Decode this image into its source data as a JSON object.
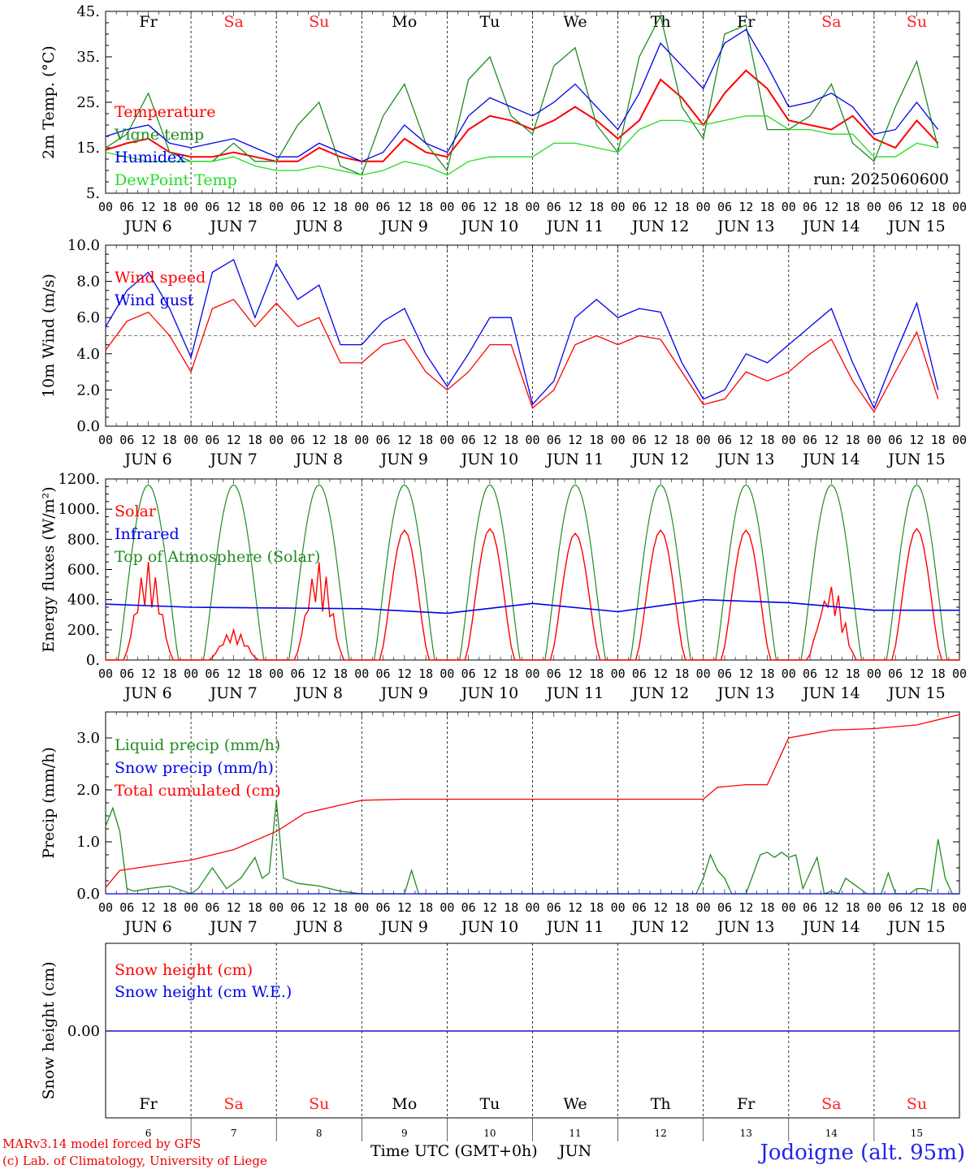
{
  "run_label": "run: 2025060600",
  "x_axis": {
    "hour_labels": [
      "00",
      "06",
      "12",
      "18"
    ],
    "end_label": "00",
    "month": "JUN",
    "days": [
      6,
      7,
      8,
      9,
      10,
      11,
      12,
      13,
      14,
      15
    ],
    "day_names": [
      "Fr",
      "Sa",
      "Su",
      "Mo",
      "Tu",
      "We",
      "Th",
      "Fr",
      "Sa",
      "Su"
    ],
    "weekend_color": "#ff2020",
    "weekday_color": "#000000",
    "title": "Time UTC (GMT+0h)",
    "title_suffix": "JUN"
  },
  "footer": {
    "model": "MARv3.14 model forced by GFS",
    "copyright": "(c) Lab. of Climatology, University of Liege",
    "station": "Jodoigne (alt. 95m)"
  },
  "colors": {
    "red": "#ff0000",
    "blue": "#0000ee",
    "green": "#228b22",
    "lime": "#22dd22",
    "grey": "#555555"
  },
  "chart_data": [
    {
      "type": "line",
      "id": "temperature",
      "ylabel": "2m Temp. (°C)",
      "ylim": [
        5,
        45
      ],
      "ticks": [
        5,
        15,
        25,
        35,
        45
      ],
      "tick_labels": [
        "5.",
        "15.",
        "25.",
        "35.",
        "45."
      ],
      "x_unit": "hours since JUN 6 00 UTC",
      "x": [
        0,
        6,
        12,
        18,
        24,
        30,
        36,
        42,
        48,
        54,
        60,
        66,
        72,
        78,
        84,
        90,
        96,
        102,
        108,
        114,
        120,
        126,
        132,
        138,
        144,
        150,
        156,
        162,
        168,
        174,
        180,
        186,
        192,
        198,
        204,
        210,
        216,
        222,
        228,
        234
      ],
      "series": [
        {
          "name": "Temperature",
          "color": "#ff0000",
          "values": [
            14.5,
            16,
            17,
            14,
            13,
            13,
            14,
            13,
            12,
            12,
            15,
            13,
            12,
            12,
            17,
            14,
            13,
            19,
            22,
            21,
            19,
            21,
            24,
            21,
            17,
            21,
            30,
            26,
            20,
            27,
            32,
            28,
            21,
            20,
            19,
            22,
            17,
            15,
            21,
            16
          ]
        },
        {
          "name": "Vigne temp",
          "color": "#228b22",
          "values": [
            15,
            18,
            27,
            14,
            12,
            12,
            16,
            12,
            12,
            20,
            25,
            11,
            9,
            22,
            29,
            16,
            10,
            30,
            35,
            22,
            18,
            33,
            37,
            20,
            14,
            35,
            44,
            24,
            17,
            40,
            42,
            19,
            19,
            22,
            29,
            16,
            12,
            24,
            34,
            15
          ]
        },
        {
          "name": "Humidex",
          "color": "#0000ee",
          "values": [
            17.5,
            19,
            20,
            16,
            15,
            16,
            17,
            15,
            13,
            13,
            16,
            14,
            12,
            14,
            20,
            16,
            14,
            22,
            26,
            24,
            22,
            25,
            29,
            24,
            19,
            27,
            38,
            33,
            28,
            38,
            41,
            33,
            24,
            25,
            27,
            24,
            18,
            19,
            25,
            19
          ]
        },
        {
          "name": "DewPoint Temp",
          "color": "#22dd22",
          "values": [
            14,
            13,
            12,
            12,
            12,
            12,
            13,
            11,
            10,
            10,
            11,
            10,
            9,
            10,
            12,
            11,
            9,
            12,
            13,
            13,
            13,
            16,
            16,
            15,
            14,
            19,
            21,
            21,
            20,
            21,
            22,
            22,
            19,
            19,
            18,
            18,
            13,
            13,
            16,
            15
          ]
        }
      ]
    },
    {
      "type": "line",
      "id": "wind",
      "ylabel": "10m Wind (m/s)",
      "ylim": [
        0,
        10
      ],
      "ticks": [
        0,
        2,
        4,
        6,
        8,
        10
      ],
      "tick_labels": [
        "0.0",
        "2.0",
        "4.0",
        "6.0",
        "8.0",
        "10.0"
      ],
      "reference_line": 5,
      "x_unit": "hours since JUN 6 00 UTC",
      "x": [
        0,
        6,
        12,
        18,
        24,
        30,
        36,
        42,
        48,
        54,
        60,
        66,
        72,
        78,
        84,
        90,
        96,
        102,
        108,
        114,
        120,
        126,
        132,
        138,
        144,
        150,
        156,
        162,
        168,
        174,
        180,
        186,
        192,
        198,
        204,
        210,
        216,
        222,
        228,
        234
      ],
      "series": [
        {
          "name": "Wind speed",
          "color": "#ff0000",
          "values": [
            4.2,
            5.8,
            6.3,
            5.0,
            3.0,
            6.5,
            7.0,
            5.5,
            6.8,
            5.5,
            6.0,
            3.5,
            3.5,
            4.5,
            4.8,
            3.0,
            2.0,
            3.0,
            4.5,
            4.5,
            1.0,
            2.0,
            4.5,
            5.0,
            4.5,
            5.0,
            4.8,
            3.0,
            1.2,
            1.5,
            3.0,
            2.5,
            3.0,
            4.0,
            4.8,
            2.5,
            0.8,
            3.0,
            5.2,
            1.5
          ]
        },
        {
          "name": "Wind gust",
          "color": "#0000ee",
          "values": [
            5.5,
            7.5,
            8.5,
            6.5,
            3.8,
            8.5,
            9.2,
            6.0,
            9.0,
            7.0,
            7.8,
            4.5,
            4.5,
            5.8,
            6.5,
            4.0,
            2.2,
            4.0,
            6.0,
            6.0,
            1.2,
            2.5,
            6.0,
            7.0,
            6.0,
            6.5,
            6.3,
            3.5,
            1.5,
            2.0,
            4.0,
            3.5,
            4.5,
            5.5,
            6.5,
            3.5,
            1.0,
            4.0,
            6.8,
            2.0
          ]
        }
      ]
    },
    {
      "type": "line",
      "id": "energy",
      "ylabel": "Energy fluxes (W/m²)",
      "ylim": [
        0,
        1200
      ],
      "ticks": [
        0,
        200,
        400,
        600,
        800,
        1000,
        1200
      ],
      "tick_labels": [
        "0.",
        "200.",
        "400.",
        "600.",
        "800.",
        "1000.",
        "1200."
      ],
      "x_unit": "hours since JUN 6 00 UTC",
      "toa_peak": 1160,
      "daily_solar_peaks": [
        650,
        200,
        650,
        860,
        870,
        840,
        860,
        860,
        500,
        870
      ],
      "series": [
        {
          "name": "Solar",
          "color": "#ff0000"
        },
        {
          "name": "Infrared",
          "color": "#0000ee",
          "x": [
            0,
            24,
            48,
            72,
            96,
            120,
            144,
            168,
            192,
            216,
            240
          ],
          "values": [
            370,
            350,
            345,
            340,
            310,
            375,
            320,
            400,
            380,
            330,
            330
          ]
        },
        {
          "name": "Top of Atmosphere (Solar)",
          "color": "#228b22"
        }
      ]
    },
    {
      "type": "line",
      "id": "precip",
      "ylabel": "Precip (mm/h)",
      "ylim": [
        0,
        3.5
      ],
      "ticks": [
        0,
        1,
        2,
        3
      ],
      "tick_labels": [
        "0.0",
        "1.0",
        "2.0",
        "3.0"
      ],
      "x_unit": "hours since JUN 6 00 UTC",
      "series": [
        {
          "name": "Liquid precip (mm/h)",
          "color": "#228b22",
          "x": [
            0,
            2,
            4,
            6,
            8,
            12,
            18,
            22,
            24,
            26,
            30,
            34,
            38,
            42,
            44,
            46,
            48,
            50,
            54,
            60,
            66,
            72,
            84,
            86,
            88,
            96,
            120,
            144,
            166,
            168,
            170,
            172,
            174,
            176,
            180,
            184,
            186,
            188,
            190,
            192,
            194,
            196,
            200,
            202,
            204,
            206,
            208,
            210,
            212,
            214,
            216,
            218,
            220,
            222,
            224,
            226,
            228,
            230,
            232,
            234,
            236,
            238,
            240
          ],
          "values": [
            1.3,
            1.65,
            1.2,
            0.1,
            0.05,
            0.1,
            0.15,
            0.05,
            0.0,
            0.1,
            0.5,
            0.1,
            0.3,
            0.7,
            0.3,
            0.4,
            1.8,
            0.3,
            0.2,
            0.15,
            0.05,
            0.0,
            0.0,
            0.45,
            0.0,
            0.0,
            0.0,
            0.0,
            0.0,
            0.3,
            0.75,
            0.45,
            0.3,
            0.0,
            0.0,
            0.75,
            0.8,
            0.7,
            0.8,
            0.7,
            0.75,
            0.1,
            0.7,
            0.0,
            0.05,
            0.0,
            0.3,
            0.2,
            0.1,
            0.0,
            0.0,
            0.0,
            0.4,
            0.0,
            0.0,
            0.0,
            0.1,
            0.1,
            0.05,
            1.05,
            0.3,
            0.0,
            0.0
          ]
        },
        {
          "name": "Snow precip (mm/h)",
          "color": "#0000ee",
          "x": [
            0,
            240
          ],
          "values": [
            0,
            0
          ]
        },
        {
          "name": "Total cumulated (cm)",
          "color": "#ff0000",
          "x": [
            0,
            4,
            24,
            36,
            48,
            56,
            72,
            84,
            96,
            120,
            144,
            168,
            172,
            180,
            186,
            192,
            204,
            216,
            228,
            240
          ],
          "values": [
            0.12,
            0.45,
            0.65,
            0.85,
            1.2,
            1.55,
            1.8,
            1.82,
            1.82,
            1.82,
            1.82,
            1.82,
            2.05,
            2.1,
            2.1,
            3.0,
            3.15,
            3.18,
            3.25,
            3.45
          ]
        }
      ]
    },
    {
      "type": "line",
      "id": "snow",
      "ylabel": "Snow height (cm)",
      "ticks": [
        0
      ],
      "tick_labels": [
        "0.00"
      ],
      "x_unit": "hours since JUN 6 00 UTC",
      "series": [
        {
          "name": "Snow height (cm)",
          "color": "#ff0000",
          "x": [
            0,
            240
          ],
          "values": [
            0,
            0
          ]
        },
        {
          "name": "Snow height (cm W.E.)",
          "color": "#0000ee",
          "x": [
            0,
            240
          ],
          "values": [
            0,
            0
          ]
        }
      ]
    }
  ]
}
